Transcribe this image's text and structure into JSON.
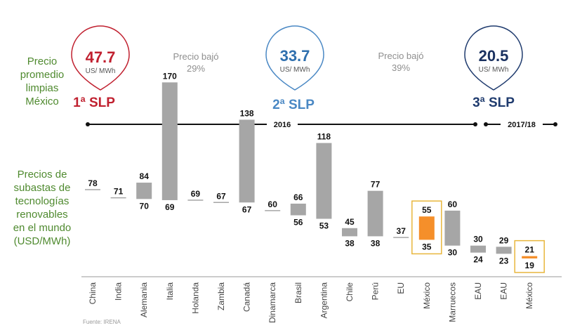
{
  "left_labels": {
    "top": [
      "Precio",
      "promedio",
      "limpias",
      "México"
    ],
    "bottom": [
      "Precios de",
      "subastas de",
      "tecnologías",
      "renovables",
      "en el mundo",
      "(USD/MWh)"
    ]
  },
  "auctions": [
    {
      "value": "47.7",
      "unit": "US/ MWh",
      "label": "1ª SLP",
      "color": "#c0202f",
      "value_color": "#c0202f"
    },
    {
      "value": "33.7",
      "unit": "US/ MWh",
      "label": "2ª SLP",
      "color": "#4a88c4",
      "value_color": "#2e6fae"
    },
    {
      "value": "20.5",
      "unit": "US/ MWh",
      "label": "3ª SLP",
      "color": "#1f3b6e",
      "value_color": "#1a3160"
    }
  ],
  "drops": [
    {
      "line1": "Precio bajó",
      "line2": "29%"
    },
    {
      "line1": "Precio bajó",
      "line2": "39%"
    }
  ],
  "timeline": {
    "period1": "2016",
    "period2": "2017/18"
  },
  "chart_data": {
    "type": "range_bar",
    "title": "Precios de subastas de tecnologías renovables en el mundo (USD/MWh)",
    "categories": [
      "China",
      "India",
      "Alemania",
      "Italia",
      "Holanda",
      "Zambia",
      "Canadá",
      "Dinamarca",
      "Brasil",
      "Argentina",
      "Chile",
      "Perú",
      "EU",
      "México",
      "Marruecos",
      "EAU",
      "EAU",
      "México"
    ],
    "high": [
      78,
      71,
      84,
      170,
      69,
      67,
      138,
      60,
      66,
      118,
      45,
      77,
      37,
      55,
      60,
      30,
      29,
      21
    ],
    "low": [
      78,
      71,
      70,
      69,
      69,
      67,
      67,
      60,
      56,
      53,
      38,
      38,
      37,
      35,
      30,
      24,
      23,
      19
    ],
    "highlighted": [
      13,
      17
    ],
    "bar_color": "#a6a6a6",
    "highlight_color": "#f58f2a",
    "highlight_box_color": "#e8b63d",
    "ylim": [
      0,
      180
    ]
  },
  "source": "Fuente: IRENA"
}
